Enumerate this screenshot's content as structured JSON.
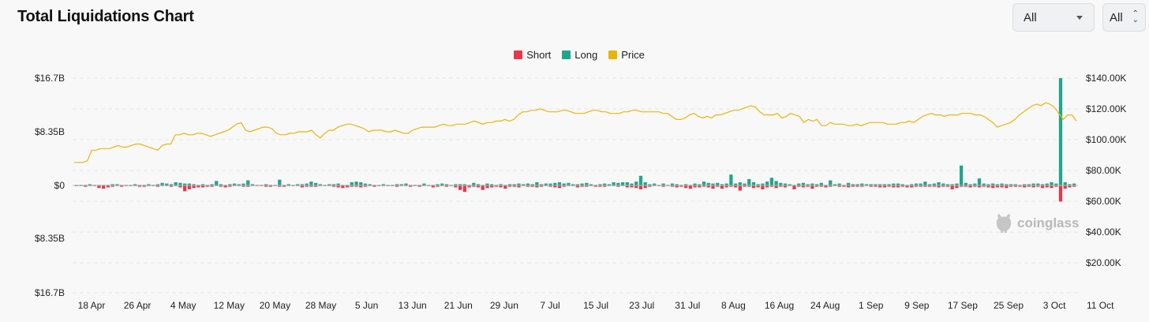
{
  "header": {
    "title": "Total Liquidations Chart"
  },
  "controls": {
    "coin_select": "All",
    "range_select": "All"
  },
  "legend": [
    {
      "label": "Short",
      "color": "#e8364d"
    },
    {
      "label": "Long",
      "color": "#22a58c"
    },
    {
      "label": "Price",
      "color": "#e9b50b"
    }
  ],
  "watermark": "coinglass",
  "chart_data": {
    "type": "bar",
    "title": "Total Liquidations Chart",
    "left_axis": {
      "ticks": [
        "$16.7B",
        "$8.35B",
        "$0",
        "$8.35B",
        "$16.7B"
      ],
      "range": [
        -16.7,
        16.7
      ],
      "unit": "B USD"
    },
    "right_axis": {
      "ticks": [
        "$140.00K",
        "$120.00K",
        "$100.00K",
        "$80.00K",
        "$60.00K",
        "$40.00K",
        "$20.00K"
      ],
      "range": [
        10,
        140
      ],
      "unit": "K USD"
    },
    "x_labels": [
      "18 Apr",
      "26 Apr",
      "4 May",
      "12 May",
      "20 May",
      "28 May",
      "5 Jun",
      "13 Jun",
      "21 Jun",
      "29 Jun",
      "7 Jul",
      "15 Jul",
      "23 Jul",
      "31 Jul",
      "8 Aug",
      "16 Aug",
      "24 Aug",
      "1 Sep",
      "9 Sep",
      "17 Sep",
      "25 Sep",
      "3 Oct",
      "11 Oct"
    ],
    "series": [
      {
        "name": "Long",
        "color": "#22a58c",
        "values": [
          0.1,
          0.1,
          0.1,
          0.2,
          0.1,
          0.1,
          0.1,
          0.1,
          0.2,
          0.2,
          0.1,
          0.1,
          0.1,
          0.2,
          0.1,
          0.1,
          0.2,
          0.1,
          0.2,
          0.4,
          0.3,
          0.2,
          0.5,
          0.4,
          0.3,
          0.3,
          0.2,
          0.1,
          0.2,
          0.1,
          0.2,
          0.7,
          0.2,
          0.1,
          0.2,
          0.3,
          0.2,
          0.3,
          0.8,
          0.2,
          0.1,
          0.1,
          0.2,
          0.1,
          0.1,
          0.9,
          0.1,
          0.2,
          0.1,
          0.2,
          0.2,
          0.3,
          0.6,
          0.4,
          0.2,
          0.1,
          0.2,
          0.2,
          0.3,
          0.1,
          0.1,
          0.5,
          0.6,
          0.5,
          0.3,
          0.2,
          0.1,
          0.1,
          0.2,
          0.1,
          0.1,
          0.2,
          0.2,
          0.3,
          0.1,
          0.1,
          0.1,
          0.3,
          0.1,
          0.1,
          0.2,
          0.3,
          0.2,
          0.1,
          0.2,
          0.2,
          0.2,
          0.1,
          0.4,
          0.2,
          0.1,
          0.3,
          0.2,
          0.1,
          0.2,
          0.1,
          0.2,
          0.2,
          0.3,
          0.2,
          0.3,
          0.2,
          0.5,
          0.2,
          0.3,
          0.3,
          0.4,
          0.5,
          0.3,
          0.4,
          0.2,
          0.2,
          0.3,
          0.4,
          0.2,
          0.1,
          0.2,
          0.3,
          0.2,
          0.5,
          0.4,
          0.5,
          0.5,
          0.3,
          0.6,
          1.5,
          0.5,
          0.2,
          0.3,
          0.1,
          0.3,
          0.1,
          0.3,
          0.2,
          0.1,
          0.2,
          0.1,
          0.3,
          0.2,
          0.6,
          0.4,
          0.3,
          0.4,
          0.2,
          0.3,
          1.7,
          0.3,
          0.5,
          0.3,
          1.0,
          0.5,
          0.2,
          0.3,
          0.6,
          1.2,
          0.7,
          0.4,
          0.3,
          0.2,
          0.1,
          0.3,
          0.4,
          0.2,
          0.3,
          0.2,
          0.4,
          0.1,
          0.8,
          0.2,
          0.3,
          0.1,
          0.4,
          0.2,
          0.2,
          0.3,
          0.2,
          0.2,
          0.2,
          0.2,
          0.2,
          0.2,
          0.3,
          0.3,
          0.2,
          0.1,
          0.2,
          0.3,
          0.3,
          0.6,
          0.2,
          0.3,
          0.5,
          0.3,
          0.2,
          0.2,
          0.3,
          3.1,
          0.4,
          0.2,
          0.3,
          1.1,
          0.3,
          0.2,
          0.3,
          0.2,
          0.3,
          0.2,
          0.2,
          0.2,
          0.1,
          0.2,
          0.2,
          0.3,
          0.3,
          0.2,
          0.3,
          0.5,
          0.3,
          16.7,
          0.5,
          0.2,
          0.3
        ]
      },
      {
        "name": "Short",
        "color": "#e8364d",
        "values": [
          0.1,
          0.1,
          0.2,
          0.1,
          0.1,
          0.4,
          0.5,
          0.3,
          0.2,
          0.1,
          0.2,
          0.1,
          0.1,
          0.1,
          0.2,
          0.2,
          0.1,
          0.1,
          0.2,
          0.1,
          0.1,
          0.2,
          0.1,
          0.3,
          0.9,
          0.6,
          0.4,
          0.3,
          0.3,
          0.2,
          0.2,
          0.1,
          0.2,
          0.3,
          0.2,
          0.1,
          0.1,
          0.2,
          0.2,
          0.1,
          0.1,
          0.1,
          0.2,
          0.2,
          0.1,
          0.2,
          0.2,
          0.1,
          0.1,
          0.1,
          0.3,
          0.2,
          0.2,
          0.2,
          0.1,
          0.1,
          0.1,
          0.2,
          0.3,
          0.4,
          0.3,
          0.2,
          0.2,
          0.3,
          0.2,
          0.1,
          0.2,
          0.1,
          0.1,
          0.1,
          0.1,
          0.2,
          0.1,
          0.1,
          0.2,
          0.1,
          0.2,
          0.1,
          0.1,
          0.3,
          0.2,
          0.1,
          0.2,
          0.1,
          0.3,
          0.7,
          1.0,
          0.3,
          0.2,
          0.3,
          0.7,
          0.4,
          0.3,
          0.2,
          0.3,
          0.5,
          0.2,
          0.2,
          0.3,
          0.1,
          0.2,
          0.2,
          0.3,
          0.2,
          0.1,
          0.2,
          0.3,
          0.4,
          0.2,
          0.1,
          0.1,
          0.3,
          0.2,
          0.2,
          0.1,
          0.2,
          0.2,
          0.2,
          0.1,
          0.1,
          0.2,
          0.1,
          0.3,
          0.3,
          0.4,
          0.6,
          0.4,
          0.2,
          0.1,
          0.1,
          0.2,
          0.1,
          0.2,
          0.3,
          0.2,
          0.4,
          0.5,
          0.3,
          0.3,
          0.2,
          0.3,
          0.5,
          0.2,
          0.5,
          0.3,
          0.2,
          0.3,
          0.8,
          0.2,
          0.2,
          0.4,
          0.3,
          0.6,
          0.3,
          0.2,
          0.4,
          0.2,
          0.3,
          0.1,
          0.6,
          0.2,
          0.3,
          0.2,
          0.5,
          0.2,
          0.2,
          0.3,
          0.2,
          0.1,
          0.2,
          0.2,
          0.3,
          0.2,
          0.2,
          0.2,
          0.1,
          0.2,
          0.2,
          0.3,
          0.3,
          0.2,
          0.3,
          0.3,
          0.2,
          0.3,
          0.3,
          0.2,
          0.2,
          0.2,
          0.2,
          0.2,
          0.3,
          0.2,
          0.2,
          0.6,
          0.4,
          0.2,
          0.2,
          0.3,
          0.2,
          0.3,
          0.2,
          0.3,
          0.4,
          0.3,
          0.3,
          0.4,
          0.2,
          0.2,
          0.2,
          0.3,
          0.2,
          0.3,
          0.2,
          0.4,
          0.3,
          0.4,
          0.2,
          2.5,
          0.5,
          0.3,
          0.2
        ]
      },
      {
        "name": "Price",
        "color": "#e9b50b",
        "axis": "right",
        "values": [
          85,
          85,
          85,
          86,
          93,
          93,
          94,
          94,
          94,
          95,
          96,
          95,
          95,
          96,
          97,
          97,
          96,
          95,
          94,
          93,
          96,
          97,
          97,
          103,
          103,
          104,
          103,
          103,
          104,
          104,
          103,
          102,
          103,
          104,
          105,
          106,
          108,
          110,
          111,
          106,
          105,
          106,
          107,
          108,
          108,
          107,
          104,
          103,
          103,
          104,
          104,
          105,
          105,
          105,
          106,
          103,
          101,
          104,
          106,
          106,
          108,
          109,
          110,
          110,
          109,
          108,
          107,
          105,
          106,
          106,
          106,
          105,
          105,
          106,
          105,
          104,
          104,
          106,
          107,
          108,
          108,
          108,
          108,
          109,
          110,
          109,
          109,
          110,
          110,
          110,
          111,
          112,
          111,
          110,
          111,
          111,
          112,
          112,
          113,
          112,
          113,
          116,
          118,
          118,
          119,
          119,
          120,
          119,
          118,
          118,
          118,
          119,
          119,
          118,
          117,
          117,
          117,
          118,
          119,
          119,
          118,
          118,
          117,
          117,
          117,
          118,
          118,
          119,
          119,
          118,
          118,
          118,
          118,
          118,
          117,
          117,
          115,
          113,
          113,
          114,
          116,
          117,
          115,
          114,
          115,
          114,
          116,
          116,
          117,
          118,
          119,
          119,
          120,
          121,
          122,
          121,
          118,
          116,
          116,
          116,
          117,
          114,
          115,
          117,
          116,
          115,
          111,
          113,
          112,
          113,
          109,
          109,
          111,
          110,
          110,
          110,
          109,
          109,
          110,
          109,
          110,
          111,
          111,
          111,
          111,
          110,
          110,
          110,
          111,
          111,
          112,
          111,
          113,
          115,
          116,
          117,
          116,
          116,
          115,
          116,
          116,
          116,
          117,
          117,
          117,
          116,
          116,
          115,
          113,
          111,
          108,
          109,
          110,
          111,
          113,
          116,
          118,
          120,
          122,
          123,
          122,
          124,
          123,
          121,
          117,
          113,
          116,
          116,
          112
        ]
      }
    ]
  }
}
